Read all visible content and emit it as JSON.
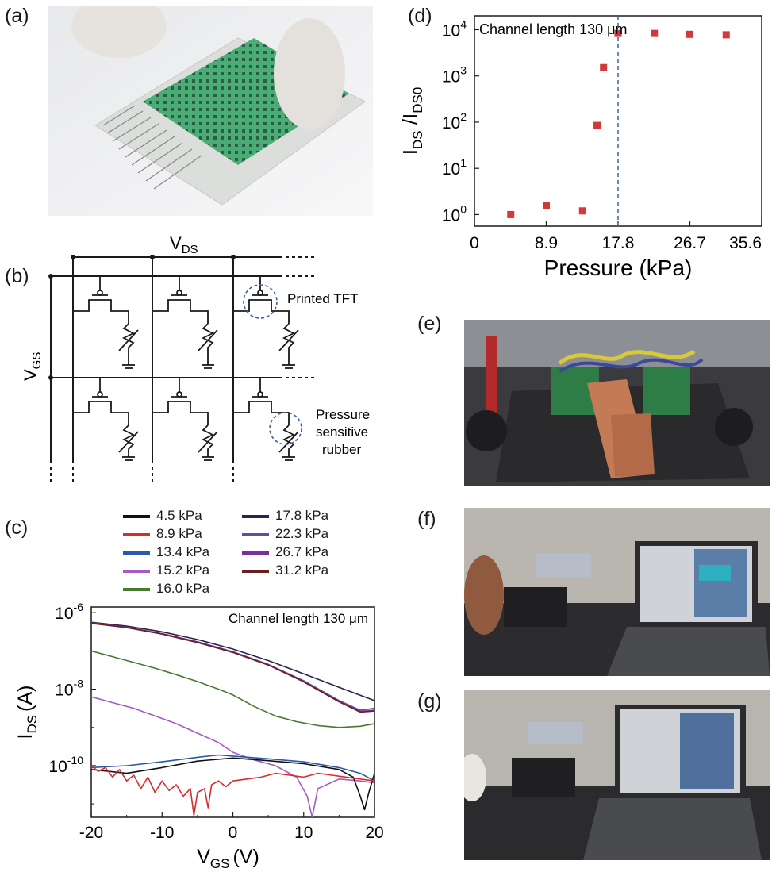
{
  "panels": {
    "a": "(a)",
    "b": "(b)",
    "c": "(c)",
    "d": "(d)",
    "e": "(e)",
    "f": "(f)",
    "g": "(g)"
  },
  "circuit": {
    "vds": "V",
    "vds_sub": "DS",
    "vgs": "V",
    "vgs_sub": "GS",
    "tft_label": "Printed TFT",
    "rubber_label_1": "Pressure",
    "rubber_label_2": "sensitive",
    "rubber_label_3": "rubber"
  },
  "colors": {
    "s4_5": "#111111",
    "s8_9": "#d62e2e",
    "s13_4": "#2c58a8",
    "s15_2": "#a45bc4",
    "s16_0": "#467a2f",
    "s17_8": "#2b2350",
    "s22_3": "#5b4fa8",
    "s26_7": "#7b2f9c",
    "s31_2": "#6b1f1f",
    "marker": "#d23a3a",
    "dashed": "#4060a0"
  },
  "chart_data": [
    {
      "id": "c",
      "type": "line",
      "annotation": "Channel length 130 μm",
      "xlabel": "V",
      "xlabel_sub": "GS",
      "xlabel_unit": "(V)",
      "ylabel": "I",
      "ylabel_sub": "DS",
      "ylabel_unit": "(A)",
      "xlim": [
        -20,
        20
      ],
      "ylim_log10": [
        -11.35,
        -5.85
      ],
      "y_scale": "log",
      "x_ticks": [
        "-20",
        "-10",
        "0",
        "10",
        "20"
      ],
      "y_ticks": [
        {
          "base": "10",
          "exp": "-6"
        },
        {
          "base": "10",
          "exp": "-8"
        },
        {
          "base": "10",
          "exp": "-10"
        }
      ],
      "legend": [
        {
          "name": "4.5 kPa",
          "color": "#111111"
        },
        {
          "name": "8.9 kPa",
          "color": "#d62e2e"
        },
        {
          "name": "13.4 kPa",
          "color": "#2c58a8"
        },
        {
          "name": "15.2 kPa",
          "color": "#a45bc4"
        },
        {
          "name": "16.0 kPa",
          "color": "#467a2f"
        },
        {
          "name": "17.8 kPa",
          "color": "#2b2350"
        },
        {
          "name": "22.3 kPa",
          "color": "#5b4fa8"
        },
        {
          "name": "26.7 kPa",
          "color": "#7b2f9c"
        },
        {
          "name": "31.2 kPa",
          "color": "#6b1f1f"
        }
      ],
      "series": [
        {
          "name": "17.8 kPa",
          "color": "#2b2350",
          "x": [
            -20,
            -15,
            -10,
            -5,
            0,
            5,
            10,
            15,
            20
          ],
          "log10y": [
            -6.25,
            -6.35,
            -6.5,
            -6.7,
            -6.95,
            -7.25,
            -7.6,
            -7.95,
            -8.3
          ]
        },
        {
          "name": "22.3 kPa",
          "color": "#5b4fa8",
          "x": [
            -20,
            -15,
            -10,
            -5,
            0,
            5,
            10,
            15,
            18,
            20
          ],
          "log10y": [
            -6.27,
            -6.38,
            -6.55,
            -6.76,
            -7.02,
            -7.35,
            -7.78,
            -8.3,
            -8.55,
            -8.5
          ]
        },
        {
          "name": "26.7 kPa",
          "color": "#7b2f9c",
          "x": [
            -20,
            -15,
            -10,
            -5,
            0,
            5,
            10,
            15,
            18,
            20
          ],
          "log10y": [
            -6.27,
            -6.39,
            -6.55,
            -6.77,
            -7.03,
            -7.36,
            -7.8,
            -8.32,
            -8.58,
            -8.55
          ]
        },
        {
          "name": "31.2 kPa",
          "color": "#6b1f1f",
          "x": [
            -20,
            -15,
            -10,
            -5,
            0,
            5,
            10,
            15,
            18,
            20
          ],
          "log10y": [
            -6.28,
            -6.39,
            -6.56,
            -6.78,
            -7.04,
            -7.37,
            -7.81,
            -8.33,
            -8.6,
            -8.57
          ]
        },
        {
          "name": "16.0 kPa",
          "color": "#467a2f",
          "x": [
            -20,
            -17,
            -14,
            -11,
            -8,
            -5,
            -2,
            0,
            3,
            6,
            9,
            12,
            15,
            18,
            20
          ],
          "log10y": [
            -7.0,
            -7.15,
            -7.3,
            -7.45,
            -7.62,
            -7.8,
            -8.0,
            -8.15,
            -8.45,
            -8.7,
            -8.85,
            -8.95,
            -9.0,
            -8.97,
            -8.9
          ]
        },
        {
          "name": "15.2 kPa",
          "color": "#a45bc4",
          "x": [
            -20,
            -17,
            -14,
            -11,
            -8,
            -5,
            -2,
            0,
            3,
            6,
            9,
            10.5,
            11.2,
            12,
            15,
            18,
            20
          ],
          "log10y": [
            -8.2,
            -8.35,
            -8.5,
            -8.7,
            -8.9,
            -9.15,
            -9.4,
            -9.65,
            -9.85,
            -10.0,
            -10.3,
            -10.8,
            -11.35,
            -10.6,
            -10.35,
            -10.4,
            -10.45
          ]
        },
        {
          "name": "13.4 kPa",
          "color": "#2c58a8",
          "x": [
            -20,
            -15,
            -10,
            -5,
            -2,
            0,
            5,
            10,
            15,
            18,
            20
          ],
          "log10y": [
            -10.05,
            -10.0,
            -9.9,
            -9.78,
            -9.72,
            -9.75,
            -9.82,
            -9.9,
            -10.05,
            -10.2,
            -10.4
          ]
        },
        {
          "name": "4.5 kPa",
          "color": "#111111",
          "x": [
            -20,
            -15,
            -10,
            -5,
            0,
            5,
            10,
            15,
            17,
            18,
            18.6,
            19.2,
            20
          ],
          "log10y": [
            -10.1,
            -10.2,
            -10.05,
            -9.88,
            -9.8,
            -9.87,
            -9.95,
            -10.1,
            -10.3,
            -10.8,
            -11.15,
            -10.7,
            -10.2
          ]
        },
        {
          "name": "8.9 kPa",
          "color": "#d62e2e",
          "x": [
            -20,
            -19,
            -18,
            -17,
            -16,
            -15,
            -14,
            -13,
            -12,
            -11,
            -10,
            -9,
            -8,
            -7,
            -6,
            -5.5,
            -5,
            -4,
            -3.5,
            -3,
            -2,
            -1,
            0,
            2,
            4,
            6,
            8,
            10,
            12,
            14,
            16,
            18,
            20
          ],
          "log10y": [
            -10.0,
            -10.15,
            -10.05,
            -10.3,
            -10.1,
            -10.4,
            -10.25,
            -10.6,
            -10.3,
            -10.7,
            -10.4,
            -10.65,
            -10.5,
            -10.8,
            -10.6,
            -11.3,
            -10.7,
            -10.6,
            -11.1,
            -10.5,
            -10.4,
            -10.55,
            -10.4,
            -10.35,
            -10.3,
            -10.2,
            -10.25,
            -10.3,
            -10.2,
            -10.25,
            -10.3,
            -10.35,
            -10.4
          ]
        }
      ]
    },
    {
      "id": "d",
      "type": "scatter",
      "annotation": "Channel length 130 μm",
      "xlabel": "Pressure (kPa)",
      "ylabel": "I",
      "ylabel_sub": "DS",
      "ylabel_mid": " /I",
      "ylabel_sub2": "DS0",
      "xlim": [
        0,
        35.6
      ],
      "ylim_log10": [
        -0.25,
        4.3
      ],
      "y_scale": "log",
      "x_ticks": [
        "0",
        "8.9",
        "17.8",
        "26.7",
        "35.6"
      ],
      "y_ticks": [
        {
          "base": "10",
          "exp": "0"
        },
        {
          "base": "10",
          "exp": "1"
        },
        {
          "base": "10",
          "exp": "2"
        },
        {
          "base": "10",
          "exp": "3"
        },
        {
          "base": "10",
          "exp": "4"
        }
      ],
      "vline_x": 17.8,
      "points": [
        {
          "x": 4.5,
          "log10y": 0.0
        },
        {
          "x": 8.9,
          "log10y": 0.2
        },
        {
          "x": 13.4,
          "log10y": 0.08
        },
        {
          "x": 15.2,
          "log10y": 1.93
        },
        {
          "x": 16.0,
          "log10y": 3.18
        },
        {
          "x": 17.8,
          "log10y": 3.92
        },
        {
          "x": 22.3,
          "log10y": 3.92
        },
        {
          "x": 26.7,
          "log10y": 3.9
        },
        {
          "x": 31.2,
          "log10y": 3.89
        }
      ]
    }
  ]
}
